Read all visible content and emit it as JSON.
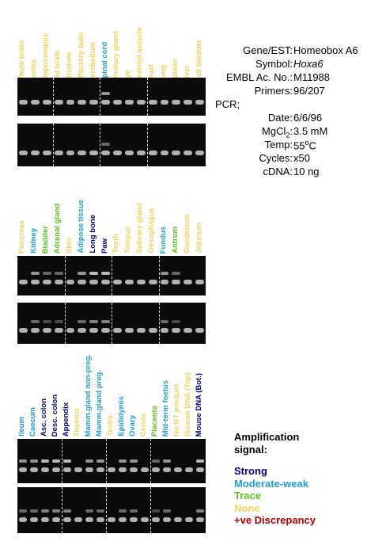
{
  "colors": {
    "strong": "#00008b",
    "moderate": "#1e9fd8",
    "trace": "#5cc21e",
    "none": "#f2d45a",
    "discrepancy": "#b40000"
  },
  "info": {
    "gene_key": "Gene/EST:",
    "gene_val": "Homeobox A6",
    "symbol_key": "Symbol:",
    "symbol_val": "Hoxa6",
    "embl_key": "EMBL Ac. No.:",
    "embl_val": "M11988",
    "primers_key": "Primers:",
    "primers_val": "96/207",
    "pcr": "PCR;",
    "date_key": "Date:",
    "date_val": "6/6/96",
    "mgcl_key_pre": "MgCl",
    "mgcl_key_sub": "2",
    "mgcl_key_post": ":",
    "mgcl_val": "3.5 mM",
    "temp_key": "Temp:",
    "temp_val_pre": "55",
    "temp_val_sup": "o",
    "temp_val_post": "C",
    "cycles_key": "Cycles:",
    "cycles_val": "x50",
    "cdna_key": "cDNA:",
    "cdna_val": "10 ng"
  },
  "legend": {
    "title1": "Amplification",
    "title2": "signal:",
    "strong": "Strong",
    "moderate": "Moderate-weak",
    "trace": "Trace",
    "none": "None",
    "discrepancy": "+ve Discrepancy"
  },
  "panels": [
    {
      "lanes": [
        {
          "label": "Whole brain",
          "level": "none"
        },
        {
          "label": "Cortex",
          "level": "none"
        },
        {
          "label": "Hippocampus",
          "level": "none"
        },
        {
          "label": "Mid brain",
          "level": "none"
        },
        {
          "label": "Striatum",
          "level": "none"
        },
        {
          "label": "Olfactory bulb",
          "level": "none"
        },
        {
          "label": "Cerebellum",
          "level": "none"
        },
        {
          "label": "Spinal cord",
          "level": "moderate"
        },
        {
          "label": "Pituitary gland",
          "level": "none"
        },
        {
          "label": "Eye",
          "level": "none"
        },
        {
          "label": "Skeletal muscle",
          "level": "none"
        },
        {
          "label": "Heart",
          "level": "none"
        },
        {
          "label": "Lung",
          "level": "none"
        },
        {
          "label": "Spleen",
          "level": "none"
        },
        {
          "label": "Liver",
          "level": "none"
        },
        {
          "label": "Gall bladder",
          "level": "none"
        }
      ]
    },
    {
      "lanes": [
        {
          "label": "Pancreas",
          "level": "none"
        },
        {
          "label": "Kidney",
          "level": "moderate"
        },
        {
          "label": "Bladder",
          "level": "trace"
        },
        {
          "label": "Adrenal gland",
          "level": "trace"
        },
        {
          "label": "Skin",
          "level": "none"
        },
        {
          "label": "Adipose tissue",
          "level": "moderate"
        },
        {
          "label": "Long bone",
          "level": "strong"
        },
        {
          "label": "Paw",
          "level": "strong"
        },
        {
          "label": "Teeth",
          "level": "none"
        },
        {
          "label": "Tongue",
          "level": "none"
        },
        {
          "label": "Salivary gland",
          "level": "none"
        },
        {
          "label": "Oesophagus",
          "level": "none"
        },
        {
          "label": "Fundus",
          "level": "moderate"
        },
        {
          "label": "Antrum",
          "level": "trace"
        },
        {
          "label": "Duodenum",
          "level": "none"
        },
        {
          "label": "Jejunum",
          "level": "none"
        }
      ]
    },
    {
      "lanes": [
        {
          "label": "Ileum",
          "level": "moderate"
        },
        {
          "label": "Caecum",
          "level": "moderate"
        },
        {
          "label": "Asc. colon",
          "level": "strong"
        },
        {
          "label": "Desc. colon",
          "level": "strong"
        },
        {
          "label": "Appendix",
          "level": "strong"
        },
        {
          "label": "Thymus",
          "level": "none"
        },
        {
          "label": "Mamm.gland non-preg.",
          "level": "moderate"
        },
        {
          "label": "Mamm.gland preg.",
          "level": "moderate"
        },
        {
          "label": "Testis",
          "level": "none"
        },
        {
          "label": "Epididymis",
          "level": "moderate"
        },
        {
          "label": "Ovary",
          "level": "moderate"
        },
        {
          "label": "Cervix",
          "level": "none"
        },
        {
          "label": "Placenta",
          "level": "trace"
        },
        {
          "label": "Mid-term foetus",
          "level": "moderate"
        },
        {
          "label": "No RT product",
          "level": "none"
        },
        {
          "label": "Human DNA (Top)",
          "level": "none"
        },
        {
          "label": "Mouse DNA (Bot.)",
          "level": "strong"
        }
      ]
    }
  ]
}
